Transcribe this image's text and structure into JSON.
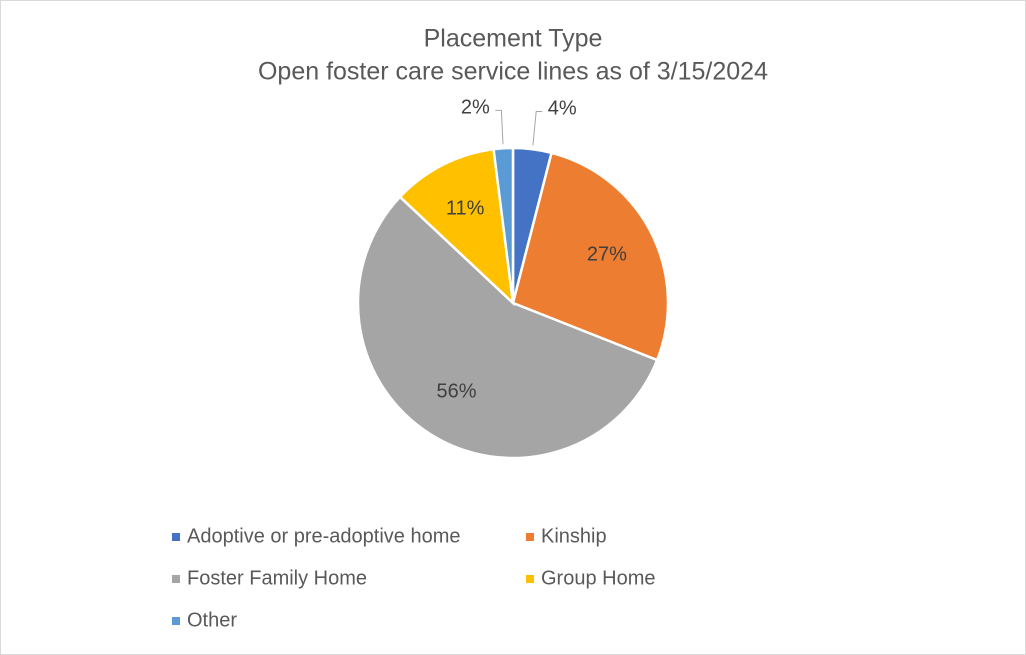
{
  "chart_data": {
    "type": "pie",
    "title": "Placement Type",
    "subtitle": "Open foster care service lines as of 3/15/2024",
    "categories": [
      "Adoptive or pre-adoptive home",
      "Kinship",
      "Foster Family Home",
      "Group Home",
      "Other"
    ],
    "values": [
      4,
      27,
      56,
      11,
      2
    ],
    "value_labels": [
      "4%",
      "27%",
      "56%",
      "11%",
      "2%"
    ],
    "colors": [
      "#4472c4",
      "#ed7d31",
      "#a5a5a5",
      "#ffc000",
      "#5b9bd5"
    ],
    "legend": "bottom"
  }
}
